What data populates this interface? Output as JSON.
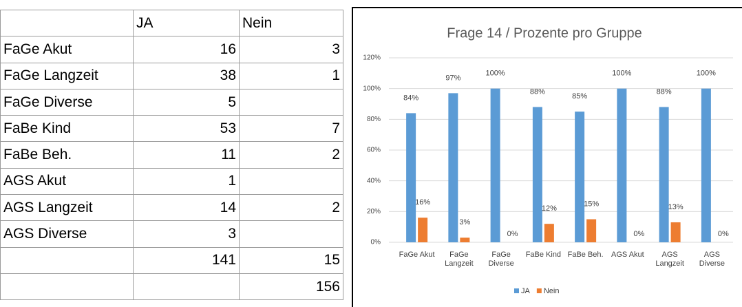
{
  "table": {
    "header": [
      null,
      "JA",
      "Nein"
    ],
    "rows": [
      [
        "FaGe Akut",
        16,
        3
      ],
      [
        "FaGe Langzeit",
        38,
        1
      ],
      [
        "FaGe Diverse",
        5,
        null
      ],
      [
        "FaBe Kind",
        53,
        7
      ],
      [
        "FaBe Beh.",
        11,
        2
      ],
      [
        "AGS Akut",
        1,
        null
      ],
      [
        "AGS Langzeit",
        14,
        2
      ],
      [
        "AGS Diverse",
        3,
        null
      ],
      [
        null,
        141,
        15
      ],
      [
        null,
        null,
        156
      ]
    ]
  },
  "chart_data": {
    "type": "bar",
    "title": "Frage 14 / Prozente pro Gruppe",
    "categories": [
      "FaGe Akut",
      "FaGe Langzeit",
      "FaGe Diverse",
      "FaBe Kind",
      "FaBe Beh.",
      "AGS Akut",
      "AGS Langzeit",
      "AGS Diverse"
    ],
    "series": [
      {
        "name": "JA",
        "color": "#5b9bd5",
        "values": [
          84,
          97,
          100,
          88,
          85,
          100,
          88,
          100
        ],
        "value_labels": [
          "84%",
          "97%",
          "100%",
          "88%",
          "85%",
          "100%",
          "88%",
          "100%"
        ]
      },
      {
        "name": "Nein",
        "color": "#ed7d31",
        "values": [
          16,
          3,
          0,
          12,
          15,
          0,
          13,
          0
        ],
        "value_labels": [
          "16%",
          "3%",
          "0%",
          "12%",
          "15%",
          "0%",
          "13%",
          "0%"
        ]
      }
    ],
    "ylim": [
      0,
      120
    ],
    "yticks": [
      {
        "value": 0,
        "label": "0%"
      },
      {
        "value": 20,
        "label": "20%"
      },
      {
        "value": 40,
        "label": "40%"
      },
      {
        "value": 60,
        "label": "60%"
      },
      {
        "value": 80,
        "label": "80%"
      },
      {
        "value": 100,
        "label": "100%"
      },
      {
        "value": 120,
        "label": "120%"
      }
    ],
    "grid": true,
    "legend": "bottom"
  }
}
